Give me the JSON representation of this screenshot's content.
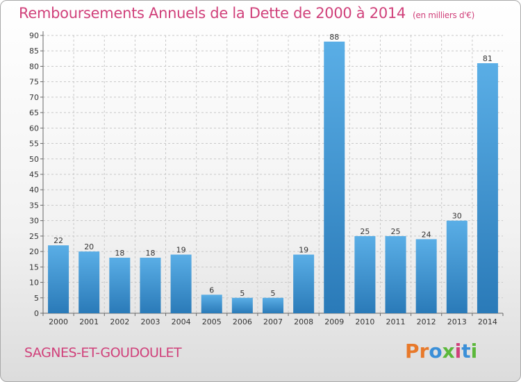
{
  "header": {
    "title": "Remboursements Annuels de la Dette de 2000 à 2014",
    "unit": "(en milliers d'€)"
  },
  "footer": {
    "commune": "SAGNES-ET-GOUDOULET",
    "logo": "Proxiti"
  },
  "colors": {
    "title": "#d0407a",
    "bar_light": "#5aaee6",
    "bar_dark": "#2a7ab8",
    "grid": "#c8c8c8",
    "logo_letters": [
      "#e8792a",
      "#e8792a",
      "#3a8fd8",
      "#5bb83a",
      "#d0407a",
      "#3a8fd8",
      "#5bb83a"
    ]
  },
  "chart_data": {
    "type": "bar",
    "title": "Remboursements Annuels de la Dette de 2000 à 2014",
    "xlabel": "",
    "ylabel": "",
    "categories": [
      "2000",
      "2001",
      "2002",
      "2003",
      "2004",
      "2005",
      "2006",
      "2007",
      "2008",
      "2009",
      "2010",
      "2011",
      "2012",
      "2013",
      "2014"
    ],
    "values": [
      22,
      20,
      18,
      18,
      19,
      6,
      5,
      5,
      19,
      88,
      25,
      25,
      24,
      30,
      81
    ],
    "ylim": [
      0,
      90
    ],
    "yticks": [
      0,
      5,
      10,
      15,
      20,
      25,
      30,
      35,
      40,
      45,
      50,
      55,
      60,
      65,
      70,
      75,
      80,
      85,
      90
    ],
    "grid": true
  }
}
